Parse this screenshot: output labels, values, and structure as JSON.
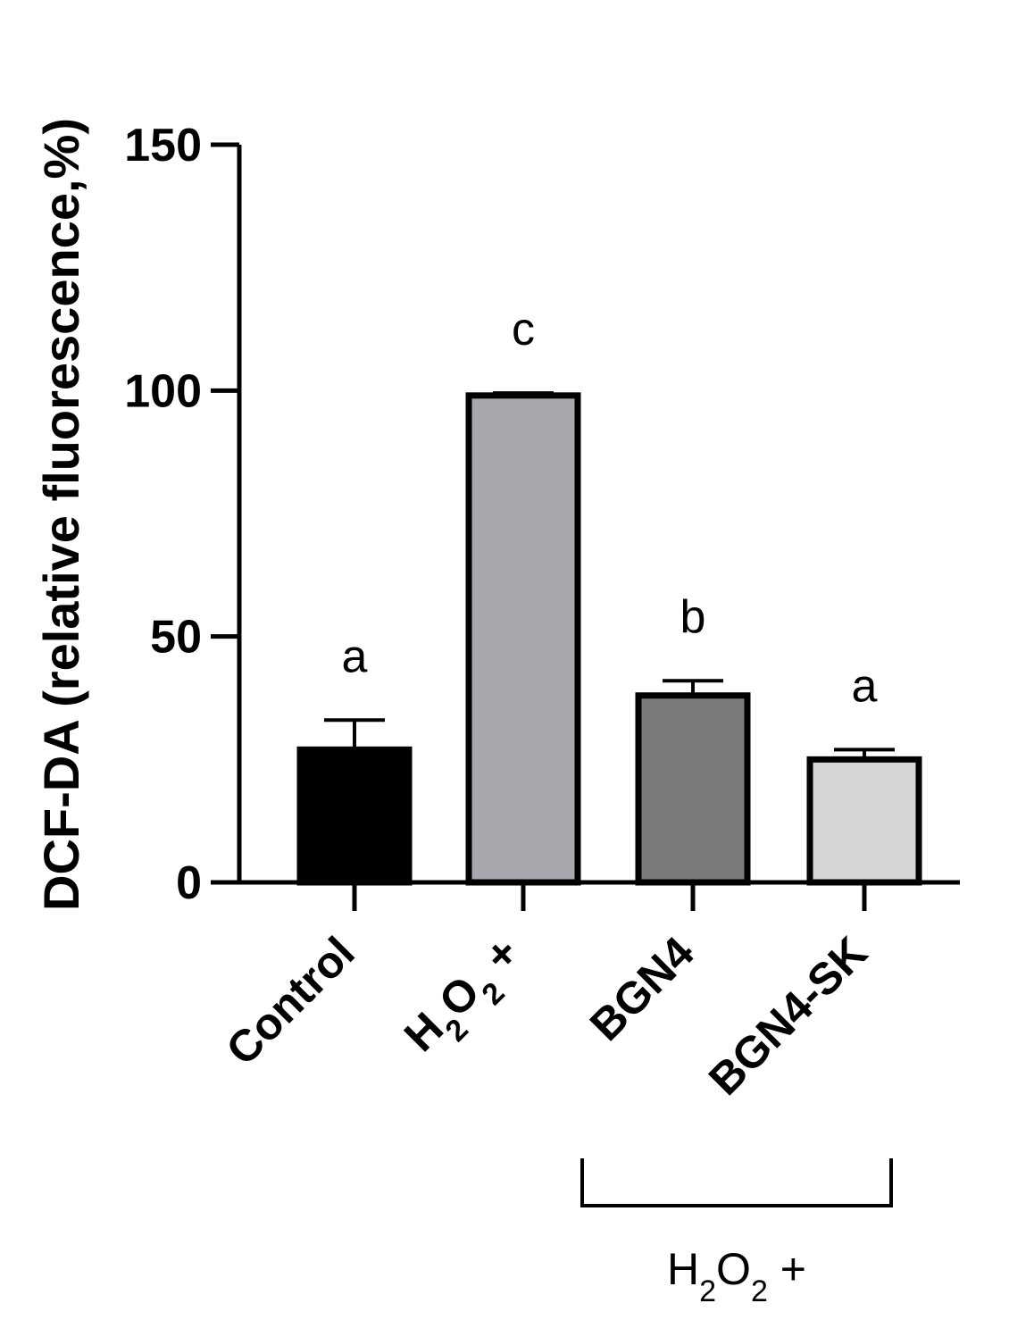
{
  "chart_data": {
    "type": "bar",
    "title": "",
    "ylabel": "DCF-DA (relative fluorescence,%)",
    "xlabel": "",
    "ylim": [
      0,
      150
    ],
    "yticks": [
      0,
      50,
      100,
      150
    ],
    "yticks_text": [
      "0",
      "50",
      "100",
      "150"
    ],
    "categories": [
      {
        "pre": "Control",
        "sub": "",
        "mid": "",
        "sub2": "",
        "post": ""
      },
      {
        "pre": "H",
        "sub": "2",
        "mid": "O",
        "sub2": "2",
        "post": " +"
      },
      {
        "pre": "BGN4",
        "sub": "",
        "mid": "",
        "sub2": "",
        "post": ""
      },
      {
        "pre": "BGN4-SK",
        "sub": "",
        "mid": "",
        "sub2": "",
        "post": ""
      }
    ],
    "values": [
      27,
      99,
      38,
      25
    ],
    "errors": [
      6,
      0.5,
      3,
      2
    ],
    "significance": [
      "a",
      "c",
      "b",
      "a"
    ],
    "colors": [
      "#000000",
      "#a8a7ae",
      "#7a7a7a",
      "#d6d6d6"
    ],
    "grid": false,
    "group_bracket": {
      "covers": [
        2,
        3
      ],
      "label": {
        "pre": "H",
        "sub": "2",
        "mid": "O",
        "sub2": "2",
        "post": " +"
      }
    }
  }
}
